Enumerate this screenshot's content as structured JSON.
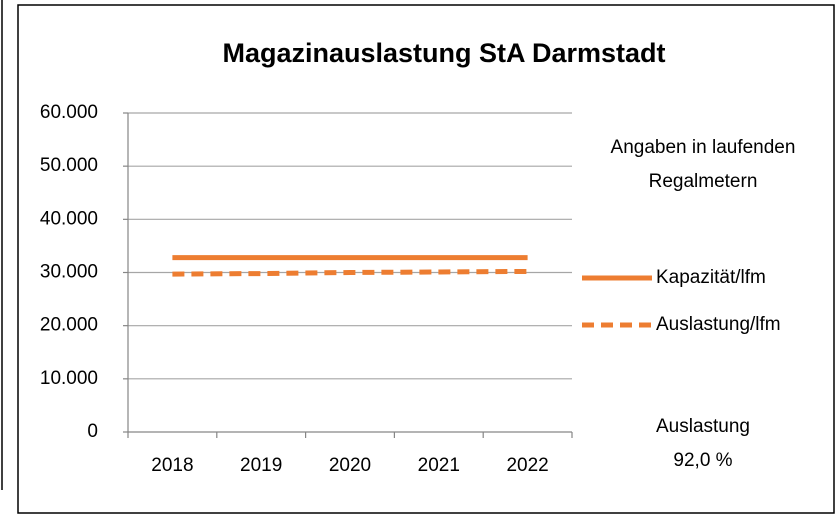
{
  "chart_data": {
    "type": "line",
    "title": "Magazinauslastung StA Darmstadt",
    "categories": [
      "2018",
      "2019",
      "2020",
      "2021",
      "2022"
    ],
    "series": [
      {
        "name": "Kapazität/lfm",
        "color": "#ed7d31",
        "dash": false,
        "values": [
          32800,
          32800,
          32800,
          32800,
          32800
        ]
      },
      {
        "name": "Auslastung/lfm",
        "color": "#ed7d31",
        "dash": true,
        "values": [
          29700,
          29800,
          30000,
          30100,
          30200
        ]
      }
    ],
    "ylim": [
      0,
      60000
    ],
    "yticks": [
      0,
      {
        "value": 10000,
        "label": "10.000"
      },
      {
        "value": 20000,
        "label": "20.000"
      },
      {
        "value": 30000,
        "label": "30.000"
      },
      {
        "value": 40000,
        "label": "40.000"
      },
      {
        "value": 50000,
        "label": "50.000"
      },
      {
        "value": 60000,
        "label": "60.000"
      }
    ],
    "grid": true,
    "legend": "right",
    "annotations": [
      {
        "lines": [
          "Angaben in laufenden",
          "Regalmetern"
        ]
      },
      {
        "lines": [
          "Auslastung",
          "92,0 %"
        ]
      }
    ]
  }
}
